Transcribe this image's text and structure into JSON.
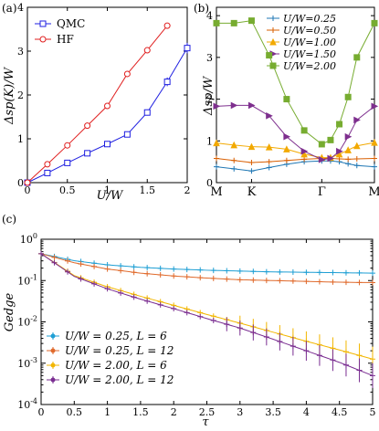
{
  "chart_data": [
    {
      "panel": "(a)",
      "type": "line",
      "xlabel": "U/W",
      "ylabel": "Δsp(K)/W",
      "xlim": [
        0,
        2
      ],
      "ylim": [
        0,
        4
      ],
      "xticks": [
        "0",
        "0.5",
        "1",
        "1.5",
        "2"
      ],
      "yticks": [
        "0",
        "1",
        "2",
        "3",
        "4"
      ],
      "legend_position": "top-left",
      "series": [
        {
          "name": "QMC",
          "color": "#1f1fe0",
          "marker": "square",
          "x": [
            0,
            0.25,
            0.5,
            0.75,
            1.0,
            1.25,
            1.5,
            1.75,
            2.0
          ],
          "y": [
            0.0,
            0.22,
            0.45,
            0.67,
            0.88,
            1.1,
            1.6,
            2.3,
            3.07
          ],
          "err": [
            0.02,
            0.03,
            0.03,
            0.03,
            0.04,
            0.05,
            0.07,
            0.1,
            0.12
          ]
        },
        {
          "name": "HF",
          "color": "#e01f1f",
          "marker": "circle",
          "x": [
            0,
            0.25,
            0.5,
            0.75,
            1.0,
            1.25,
            1.5,
            1.75
          ],
          "y": [
            0.0,
            0.42,
            0.85,
            1.3,
            1.75,
            2.48,
            3.02,
            3.58
          ]
        }
      ]
    },
    {
      "panel": "(b)",
      "type": "line",
      "xlabel": "",
      "ylabel": "Δsp/W",
      "x_tick_labels": [
        "M",
        "K",
        "Γ",
        "M"
      ],
      "x_tick_positions": [
        0,
        1,
        3,
        4.5
      ],
      "xlim": [
        0,
        4.5
      ],
      "ylim": [
        0,
        4.2
      ],
      "yticks": [
        "0",
        "1",
        "2",
        "3",
        "4"
      ],
      "legend_position": "top-right",
      "series": [
        {
          "name": "U/W=0.25",
          "color": "#1f77b4",
          "marker": "cross",
          "x": [
            0,
            0.5,
            1.0,
            1.5,
            2.0,
            2.5,
            3.0,
            3.25,
            3.5,
            3.75,
            4.0,
            4.5
          ],
          "y": [
            0.38,
            0.33,
            0.28,
            0.36,
            0.44,
            0.5,
            0.52,
            0.52,
            0.5,
            0.45,
            0.41,
            0.38
          ]
        },
        {
          "name": "U/W=0.50",
          "color": "#d95f02",
          "marker": "cross",
          "x": [
            0,
            0.5,
            1.0,
            1.5,
            2.0,
            2.5,
            3.0,
            3.25,
            3.5,
            3.75,
            4.0,
            4.5
          ],
          "y": [
            0.58,
            0.53,
            0.48,
            0.5,
            0.53,
            0.56,
            0.58,
            0.58,
            0.57,
            0.56,
            0.57,
            0.58
          ]
        },
        {
          "name": "U/W=1.00",
          "color": "#f2a900",
          "marker": "triangle",
          "x": [
            0,
            0.5,
            1.0,
            1.5,
            2.0,
            2.5,
            3.0,
            3.25,
            3.5,
            3.75,
            4.0,
            4.5
          ],
          "y": [
            0.95,
            0.9,
            0.86,
            0.85,
            0.8,
            0.68,
            0.6,
            0.6,
            0.68,
            0.78,
            0.88,
            0.96
          ]
        },
        {
          "name": "U/W=1.50",
          "color": "#7e2f8e",
          "marker": "triangle-right",
          "x": [
            0,
            0.5,
            1.0,
            1.5,
            2.0,
            2.5,
            3.0,
            3.25,
            3.5,
            3.75,
            4.0,
            4.5
          ],
          "y": [
            1.83,
            1.85,
            1.85,
            1.6,
            1.1,
            0.75,
            0.55,
            0.58,
            0.75,
            1.1,
            1.5,
            1.83
          ]
        },
        {
          "name": "U/W=2.00",
          "color": "#77ac30",
          "marker": "square",
          "x": [
            0,
            0.5,
            1.0,
            1.5,
            2.0,
            2.5,
            3.0,
            3.25,
            3.5,
            3.75,
            4.0,
            4.5
          ],
          "y": [
            3.82,
            3.82,
            3.88,
            3.05,
            2.0,
            1.25,
            0.92,
            1.02,
            1.4,
            2.05,
            3.0,
            3.82
          ]
        }
      ]
    },
    {
      "panel": "(c)",
      "type": "line",
      "xlabel": "τ",
      "ylabel": "Gedge",
      "xlim": [
        0,
        5
      ],
      "ylim_log10": [
        -4,
        0
      ],
      "yscale": "log",
      "xticks": [
        "0",
        "0.5",
        "1",
        "1.5",
        "2",
        "2.5",
        "3",
        "3.5",
        "4",
        "4.5",
        "5"
      ],
      "yticks": [
        "10-4",
        "10-3",
        "10-2",
        "10-1",
        "100"
      ],
      "legend_position": "bottom-left",
      "series": [
        {
          "name": "U/W = 0.25, L = 6",
          "color": "#1f9fd4",
          "marker": "cross",
          "anchors_x": [
            0,
            0.5,
            1,
            1.5,
            2,
            2.5,
            3,
            3.5,
            4,
            4.5,
            5
          ],
          "anchors_log10": [
            -0.35,
            -0.52,
            -0.62,
            -0.68,
            -0.72,
            -0.75,
            -0.77,
            -0.79,
            -0.8,
            -0.81,
            -0.82
          ]
        },
        {
          "name": "U/W = 0.25, L = 12",
          "color": "#e06a2c",
          "marker": "cross",
          "anchors_x": [
            0,
            0.5,
            1,
            1.5,
            2,
            2.5,
            3,
            3.5,
            4,
            4.5,
            5
          ],
          "anchors_log10": [
            -0.35,
            -0.57,
            -0.72,
            -0.82,
            -0.89,
            -0.94,
            -0.98,
            -1.0,
            -1.02,
            -1.04,
            -1.05
          ]
        },
        {
          "name": "U/W = 2.00, L = 6",
          "color": "#f2b600",
          "marker": "cross",
          "anchors_x": [
            0,
            0.5,
            1,
            1.5,
            2,
            2.5,
            3,
            3.5,
            4,
            4.5,
            5
          ],
          "anchors_log10": [
            -0.35,
            -0.88,
            -1.15,
            -1.38,
            -1.6,
            -1.82,
            -2.03,
            -2.25,
            -2.47,
            -2.68,
            -2.9
          ]
        },
        {
          "name": "U/W = 2.00, L = 12",
          "color": "#7a2d91",
          "marker": "cross",
          "anchors_x": [
            0,
            0.5,
            1,
            1.5,
            2,
            2.5,
            3,
            3.5,
            4,
            4.5,
            5
          ],
          "anchors_log10": [
            -0.35,
            -0.9,
            -1.2,
            -1.45,
            -1.68,
            -1.92,
            -2.15,
            -2.42,
            -2.7,
            -2.98,
            -3.3
          ]
        }
      ]
    }
  ]
}
